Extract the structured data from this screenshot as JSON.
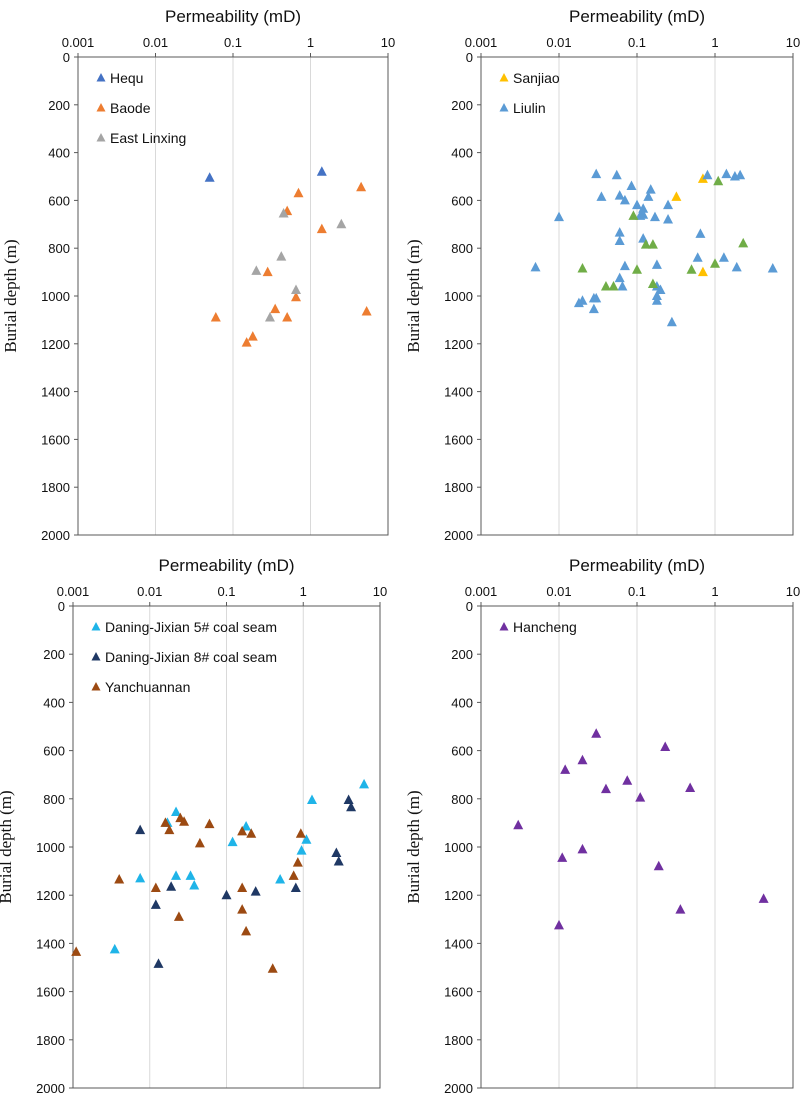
{
  "chart_data": [
    {
      "type": "scatter",
      "title": "",
      "xlabel": "Permeability (mD)",
      "ylabel": "Burial depth (m)",
      "xscale": "log",
      "xlim": [
        0.001,
        10
      ],
      "ylim": [
        0,
        2000
      ],
      "y_inverted": true,
      "x_axis_position": "top",
      "x_ticks": [
        "0.001",
        "0.01",
        "0.1",
        "1",
        "10"
      ],
      "y_ticks": [
        "0",
        "200",
        "400",
        "600",
        "800",
        "1000",
        "1200",
        "1400",
        "1600",
        "1800",
        "2000"
      ],
      "legend_position": "top-left",
      "series": [
        {
          "name": "Hequ",
          "color": "#4472C4",
          "marker": "triangle",
          "x": [
            0.05,
            1.4
          ],
          "y": [
            505,
            480
          ]
        },
        {
          "name": "Baode",
          "color": "#ED7D31",
          "marker": "triangle",
          "x": [
            4.5,
            0.7,
            0.5,
            1.4,
            5.3,
            0.28,
            0.65,
            0.35,
            0.5,
            0.06,
            0.18,
            0.15
          ],
          "y": [
            545,
            570,
            645,
            720,
            1065,
            900,
            1005,
            1055,
            1090,
            1090,
            1170,
            1195
          ]
        },
        {
          "name": "East Linxing",
          "color": "#A5A5A5",
          "marker": "triangle",
          "x": [
            0.45,
            2.5,
            0.42,
            0.2,
            0.65,
            0.3
          ],
          "y": [
            655,
            700,
            835,
            895,
            975,
            1090
          ]
        }
      ]
    },
    {
      "type": "scatter",
      "title": "",
      "xlabel": "Permeability (mD)",
      "ylabel": "Burial depth (m)",
      "xscale": "log",
      "xlim": [
        0.001,
        10
      ],
      "ylim": [
        0,
        2000
      ],
      "y_inverted": true,
      "x_axis_position": "top",
      "x_ticks": [
        "0.001",
        "0.01",
        "0.1",
        "1",
        "10"
      ],
      "y_ticks": [
        "0",
        "200",
        "400",
        "600",
        "800",
        "1000",
        "1200",
        "1400",
        "1600",
        "1800",
        "2000"
      ],
      "legend_position": "top-left",
      "series": [
        {
          "name": "Sanjiao",
          "color": "#FFC000",
          "marker": "triangle",
          "x": [
            0.7,
            0.32,
            0.7
          ],
          "y": [
            510,
            585,
            900
          ]
        },
        {
          "name": "Liulin",
          "color": "#5B9BD5",
          "marker": "triangle",
          "x": [
            0.03,
            0.055,
            0.8,
            1.4,
            1.8,
            2.1,
            0.085,
            0.15,
            0.06,
            0.035,
            0.14,
            0.07,
            0.1,
            0.12,
            0.12,
            0.25,
            0.17,
            0.11,
            0.01,
            0.06,
            0.06,
            0.12,
            0.65,
            0.18,
            0.06,
            0.03,
            1.3,
            0.6,
            0.065,
            0.18,
            1.9,
            0.005,
            5.5,
            0.2,
            0.07,
            0.18,
            0.02,
            0.018,
            0.028,
            0.18,
            0.028,
            0.28,
            0.25
          ],
          "y": [
            490,
            495,
            495,
            490,
            500,
            495,
            540,
            555,
            580,
            585,
            585,
            600,
            620,
            635,
            660,
            620,
            670,
            665,
            670,
            735,
            770,
            760,
            740,
            870,
            925,
            1010,
            840,
            840,
            960,
            960,
            880,
            880,
            885,
            975,
            875,
            1020,
            1020,
            1030,
            1055,
            1000,
            1010,
            1110,
            680
          ]
        },
        {
          "name": "",
          "color": "#70AD47",
          "marker": "triangle",
          "x": [
            1.1,
            0.09,
            0.13,
            0.16,
            2.3,
            0.02,
            0.1,
            0.5,
            1.0,
            0.04,
            0.05,
            0.16
          ],
          "y": [
            520,
            665,
            785,
            785,
            780,
            885,
            890,
            890,
            865,
            960,
            960,
            950
          ]
        }
      ]
    },
    {
      "type": "scatter",
      "title": "",
      "xlabel": "Permeability (mD)",
      "ylabel": "Burial depth (m)",
      "xscale": "log",
      "xlim": [
        0.001,
        10
      ],
      "ylim": [
        0,
        2000
      ],
      "y_inverted": true,
      "x_axis_position": "top",
      "x_ticks": [
        "0.001",
        "0.01",
        "0.1",
        "1",
        "10"
      ],
      "y_ticks": [
        "0",
        "200",
        "400",
        "600",
        "800",
        "1000",
        "1200",
        "1400",
        "1600",
        "1800",
        "2000"
      ],
      "legend_position": "top-left",
      "series": [
        {
          "name": "Daning-Jixian 5# coal seam",
          "color": "#1FB4E8",
          "marker": "triangle",
          "x": [
            6.2,
            1.3,
            0.022,
            0.017,
            0.18,
            0.12,
            1.1,
            0.95,
            0.0075,
            0.022,
            0.034,
            0.038,
            0.5,
            0.0035
          ],
          "y": [
            740,
            805,
            855,
            900,
            915,
            980,
            970,
            1015,
            1130,
            1120,
            1120,
            1160,
            1135,
            1425
          ]
        },
        {
          "name": "Daning-Jixian 8# coal seam",
          "color": "#1F3864",
          "marker": "triangle",
          "x": [
            0.0075,
            3.9,
            4.2,
            2.7,
            2.9,
            0.019,
            0.1,
            0.24,
            0.8,
            0.012,
            0.013
          ],
          "y": [
            930,
            805,
            835,
            1025,
            1060,
            1165,
            1200,
            1185,
            1170,
            1240,
            1485
          ]
        },
        {
          "name": "Yanchuannan",
          "color": "#9C4A12",
          "marker": "triangle",
          "x": [
            0.016,
            0.025,
            0.028,
            0.018,
            0.06,
            0.045,
            0.16,
            0.21,
            0.93,
            0.85,
            0.75,
            0.004,
            0.012,
            0.16,
            0.16,
            0.024,
            0.18,
            0.0011,
            0.4
          ],
          "y": [
            900,
            880,
            895,
            930,
            905,
            985,
            935,
            945,
            945,
            1065,
            1120,
            1135,
            1170,
            1170,
            1260,
            1290,
            1350,
            1435,
            1505
          ]
        }
      ]
    },
    {
      "type": "scatter",
      "title": "",
      "xlabel": "Permeability (mD)",
      "ylabel": "Burial depth (m)",
      "xscale": "log",
      "xlim": [
        0.001,
        10
      ],
      "ylim": [
        0,
        2000
      ],
      "y_inverted": true,
      "x_axis_position": "top",
      "x_ticks": [
        "0.001",
        "0.01",
        "0.1",
        "1",
        "10"
      ],
      "y_ticks": [
        "0",
        "200",
        "400",
        "600",
        "800",
        "1000",
        "1200",
        "1400",
        "1600",
        "1800",
        "2000"
      ],
      "legend_position": "top-left",
      "series": [
        {
          "name": "Hancheng",
          "color": "#7030A0",
          "marker": "triangle",
          "x": [
            0.03,
            0.23,
            0.012,
            0.02,
            0.075,
            0.04,
            0.48,
            0.11,
            0.003,
            0.011,
            0.02,
            0.19,
            0.36,
            4.2,
            0.01
          ],
          "y": [
            530,
            585,
            680,
            640,
            725,
            760,
            755,
            795,
            910,
            1045,
            1010,
            1080,
            1260,
            1215,
            1325
          ]
        }
      ]
    }
  ]
}
